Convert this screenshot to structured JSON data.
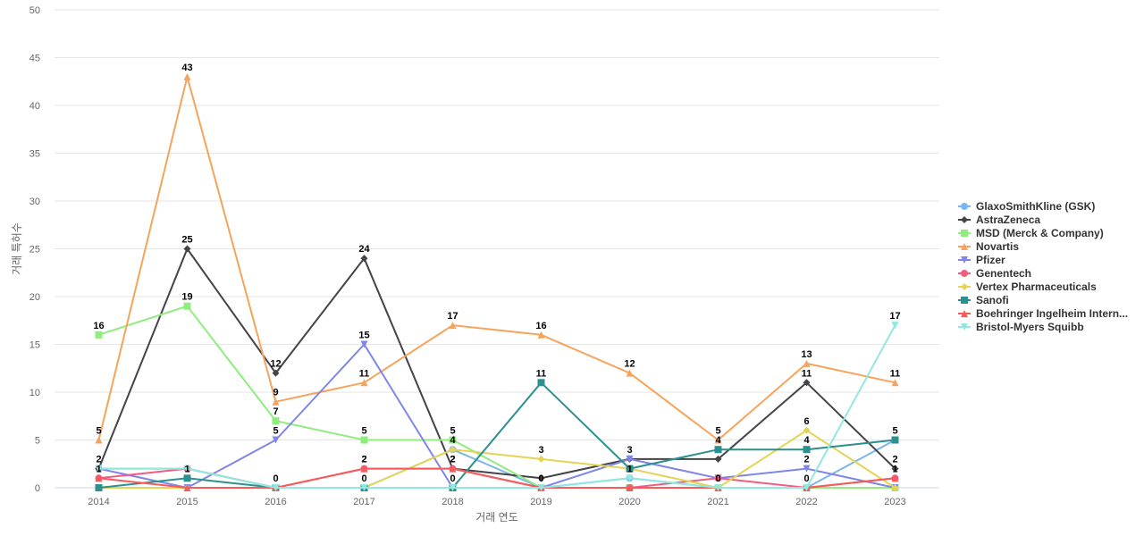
{
  "chart_data": {
    "type": "line",
    "title": "",
    "xlabel": "거래 연도",
    "ylabel": "거래 특허수",
    "ylim": [
      0,
      50
    ],
    "y_ticks": [
      0,
      5,
      10,
      15,
      20,
      25,
      30,
      35,
      40,
      45,
      50
    ],
    "categories": [
      "2014",
      "2015",
      "2016",
      "2017",
      "2018",
      "2019",
      "2020",
      "2021",
      "2022",
      "2023"
    ],
    "grid": true,
    "legend_position": "right",
    "series": [
      {
        "name": "GlaxoSmithKline (GSK)",
        "color": "#7cb5ec",
        "marker": "circle",
        "values": [
          2,
          2,
          0,
          0,
          4,
          0,
          1,
          0,
          0,
          5
        ],
        "labeled": [
          false,
          false,
          false,
          false,
          false,
          false,
          false,
          false,
          false,
          false
        ]
      },
      {
        "name": "AstraZeneca",
        "color": "#434348",
        "marker": "diamond",
        "values": [
          2,
          25,
          12,
          24,
          2,
          1,
          3,
          3,
          11,
          2
        ],
        "labeled": [
          false,
          true,
          true,
          true,
          false,
          false,
          false,
          false,
          true,
          true
        ]
      },
      {
        "name": "MSD (Merck & Company)",
        "color": "#90ed7d",
        "marker": "square",
        "values": [
          16,
          19,
          7,
          5,
          5,
          0,
          0,
          0,
          0,
          0
        ],
        "labeled": [
          true,
          true,
          true,
          true,
          true,
          false,
          false,
          false,
          false,
          false
        ]
      },
      {
        "name": "Novartis",
        "color": "#f7a35c",
        "marker": "triangle",
        "values": [
          5,
          43,
          9,
          11,
          17,
          16,
          12,
          5,
          13,
          11
        ],
        "labeled": [
          true,
          true,
          true,
          true,
          true,
          true,
          true,
          true,
          true,
          true
        ]
      },
      {
        "name": "Pfizer",
        "color": "#8085e9",
        "marker": "triangle-down",
        "values": [
          2,
          0,
          5,
          15,
          0,
          0,
          3,
          1,
          2,
          0
        ],
        "labeled": [
          true,
          false,
          true,
          true,
          false,
          false,
          true,
          false,
          true,
          false
        ]
      },
      {
        "name": "Genentech",
        "color": "#f15c80",
        "marker": "circle",
        "values": [
          1,
          2,
          0,
          2,
          2,
          0,
          0,
          1,
          0,
          1
        ],
        "labeled": [
          false,
          false,
          false,
          true,
          true,
          false,
          false,
          false,
          false,
          false
        ]
      },
      {
        "name": "Vertex Pharmaceuticals",
        "color": "#e4d354",
        "marker": "diamond",
        "values": [
          0,
          0,
          0,
          0,
          4,
          3,
          2,
          0,
          6,
          0
        ],
        "labeled": [
          false,
          false,
          false,
          false,
          true,
          true,
          false,
          false,
          true,
          false
        ]
      },
      {
        "name": "Sanofi",
        "color": "#2b908f",
        "marker": "square",
        "values": [
          0,
          1,
          0,
          0,
          0,
          11,
          2,
          4,
          4,
          5
        ],
        "labeled": [
          false,
          true,
          false,
          false,
          false,
          true,
          false,
          true,
          true,
          true
        ]
      },
      {
        "name": "Boehringer Ingelheim Intern...",
        "color": "#f45b5b",
        "marker": "triangle",
        "values": [
          1,
          0,
          0,
          2,
          2,
          0,
          0,
          0,
          0,
          1
        ],
        "labeled": [
          true,
          false,
          false,
          true,
          true,
          false,
          false,
          true,
          true,
          true
        ]
      },
      {
        "name": "Bristol-Myers Squibb",
        "color": "#91e8e1",
        "marker": "triangle-down",
        "values": [
          2,
          2,
          0,
          0,
          0,
          0,
          1,
          0,
          0,
          17
        ],
        "labeled": [
          false,
          false,
          true,
          true,
          true,
          true,
          true,
          false,
          false,
          true
        ]
      }
    ]
  }
}
